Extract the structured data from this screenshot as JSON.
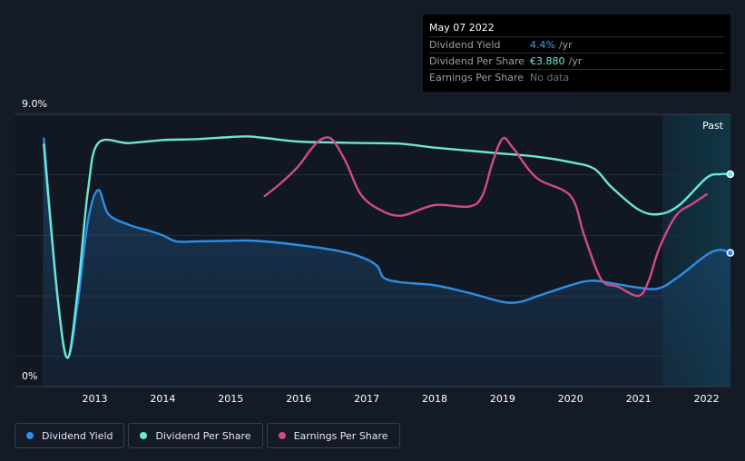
{
  "tooltip": {
    "date": "May 07 2022",
    "rows": [
      {
        "label": "Dividend Yield",
        "value": "4.4%",
        "unit": "/yr"
      },
      {
        "label": "Dividend Per Share",
        "value": "€3.880",
        "unit": "/yr"
      },
      {
        "label": "Earnings Per Share",
        "value": "No data",
        "unit": ""
      }
    ]
  },
  "legend": [
    {
      "label": "Dividend Yield",
      "color": "#2d8ee6"
    },
    {
      "label": "Dividend Per Share",
      "color": "#6ce6d6"
    },
    {
      "label": "Earnings Per Share",
      "color": "#d14a8b"
    }
  ],
  "chart_data": {
    "type": "line",
    "y_top_label": "9.0%",
    "y_bottom_label": "0%",
    "ylim": [
      0,
      9.0
    ],
    "xlim": [
      2012.25,
      2022.35
    ],
    "x_ticks": [
      "2013",
      "2014",
      "2015",
      "2016",
      "2017",
      "2018",
      "2019",
      "2020",
      "2021",
      "2022"
    ],
    "past_label": "Past",
    "past_start": 2021.35,
    "series": [
      {
        "name": "Dividend Yield",
        "color": "#2d8ee6",
        "fill": true,
        "points": [
          [
            2012.25,
            8.2
          ],
          [
            2012.45,
            3.0
          ],
          [
            2012.6,
            0.95
          ],
          [
            2012.75,
            2.8
          ],
          [
            2012.9,
            5.5
          ],
          [
            2013.05,
            6.5
          ],
          [
            2013.2,
            5.7
          ],
          [
            2013.5,
            5.35
          ],
          [
            2013.8,
            5.15
          ],
          [
            2014.0,
            5.0
          ],
          [
            2014.2,
            4.8
          ],
          [
            2014.5,
            4.8
          ],
          [
            2015.0,
            4.82
          ],
          [
            2015.25,
            4.83
          ],
          [
            2015.5,
            4.8
          ],
          [
            2016.0,
            4.68
          ],
          [
            2016.5,
            4.52
          ],
          [
            2016.9,
            4.3
          ],
          [
            2017.15,
            4.0
          ],
          [
            2017.25,
            3.6
          ],
          [
            2017.5,
            3.45
          ],
          [
            2018.0,
            3.35
          ],
          [
            2018.5,
            3.1
          ],
          [
            2019.0,
            2.8
          ],
          [
            2019.25,
            2.8
          ],
          [
            2019.5,
            2.98
          ],
          [
            2020.0,
            3.35
          ],
          [
            2020.3,
            3.5
          ],
          [
            2020.6,
            3.42
          ],
          [
            2021.0,
            3.27
          ],
          [
            2021.3,
            3.25
          ],
          [
            2021.6,
            3.65
          ],
          [
            2022.0,
            4.35
          ],
          [
            2022.2,
            4.52
          ],
          [
            2022.35,
            4.42
          ]
        ]
      },
      {
        "name": "Dividend Per Share",
        "color": "#6ce6d6",
        "fill": false,
        "points": [
          [
            2012.25,
            8.0
          ],
          [
            2012.45,
            3.0
          ],
          [
            2012.6,
            0.95
          ],
          [
            2012.75,
            3.2
          ],
          [
            2012.9,
            6.5
          ],
          [
            2013.05,
            8.05
          ],
          [
            2013.5,
            8.05
          ],
          [
            2014.0,
            8.15
          ],
          [
            2014.5,
            8.18
          ],
          [
            2015.0,
            8.25
          ],
          [
            2015.25,
            8.27
          ],
          [
            2015.5,
            8.22
          ],
          [
            2016.0,
            8.1
          ],
          [
            2016.5,
            8.07
          ],
          [
            2017.0,
            8.05
          ],
          [
            2017.5,
            8.03
          ],
          [
            2018.0,
            7.9
          ],
          [
            2018.5,
            7.8
          ],
          [
            2019.0,
            7.7
          ],
          [
            2019.5,
            7.6
          ],
          [
            2020.0,
            7.42
          ],
          [
            2020.35,
            7.2
          ],
          [
            2020.6,
            6.6
          ],
          [
            2021.0,
            5.85
          ],
          [
            2021.3,
            5.7
          ],
          [
            2021.6,
            6.0
          ],
          [
            2022.0,
            6.9
          ],
          [
            2022.2,
            7.02
          ],
          [
            2022.35,
            7.02
          ]
        ]
      },
      {
        "name": "Earnings Per Share",
        "color": "#d14a8b",
        "fill": false,
        "points": [
          [
            2015.5,
            6.3
          ],
          [
            2015.75,
            6.75
          ],
          [
            2016.0,
            7.3
          ],
          [
            2016.2,
            7.9
          ],
          [
            2016.35,
            8.2
          ],
          [
            2016.5,
            8.15
          ],
          [
            2016.7,
            7.4
          ],
          [
            2016.9,
            6.4
          ],
          [
            2017.15,
            5.9
          ],
          [
            2017.5,
            5.65
          ],
          [
            2018.0,
            6.0
          ],
          [
            2018.5,
            5.95
          ],
          [
            2018.7,
            6.3
          ],
          [
            2018.85,
            7.4
          ],
          [
            2019.0,
            8.2
          ],
          [
            2019.15,
            7.9
          ],
          [
            2019.5,
            6.9
          ],
          [
            2020.0,
            6.3
          ],
          [
            2020.2,
            5.0
          ],
          [
            2020.45,
            3.55
          ],
          [
            2020.7,
            3.3
          ],
          [
            2021.0,
            3.0
          ],
          [
            2021.15,
            3.5
          ],
          [
            2021.3,
            4.55
          ],
          [
            2021.55,
            5.65
          ],
          [
            2021.8,
            6.05
          ],
          [
            2022.0,
            6.35
          ]
        ]
      }
    ],
    "end_markers": [
      {
        "series": "Dividend Yield",
        "x": 2022.35,
        "y": 4.42
      },
      {
        "series": "Dividend Per Share",
        "x": 2022.35,
        "y": 7.02
      }
    ]
  }
}
